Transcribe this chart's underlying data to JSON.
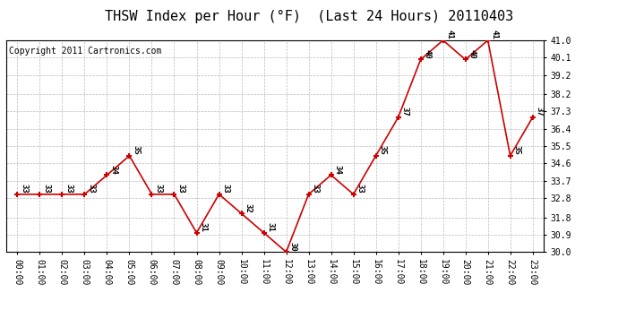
{
  "title": "THSW Index per Hour (°F)  (Last 24 Hours) 20110403",
  "copyright": "Copyright 2011 Cartronics.com",
  "hours": [
    "00:00",
    "01:00",
    "02:00",
    "03:00",
    "04:00",
    "05:00",
    "06:00",
    "07:00",
    "08:00",
    "09:00",
    "10:00",
    "11:00",
    "12:00",
    "13:00",
    "14:00",
    "15:00",
    "16:00",
    "17:00",
    "18:00",
    "19:00",
    "20:00",
    "21:00",
    "22:00",
    "23:00"
  ],
  "values": [
    33,
    33,
    33,
    33,
    34,
    35,
    33,
    33,
    31,
    33,
    32,
    31,
    30,
    33,
    34,
    33,
    35,
    37,
    40,
    41,
    40,
    41,
    35,
    37
  ],
  "line_color": "#cc0000",
  "marker_color": "#cc0000",
  "background_color": "#ffffff",
  "grid_color": "#bbbbbb",
  "ylim_min": 30.0,
  "ylim_max": 41.0,
  "yticks": [
    30.0,
    30.9,
    31.8,
    32.8,
    33.7,
    34.6,
    35.5,
    36.4,
    37.3,
    38.2,
    39.2,
    40.1,
    41.0
  ],
  "title_fontsize": 11,
  "copyright_fontsize": 7,
  "label_fontsize": 6.5,
  "tick_fontsize": 7
}
